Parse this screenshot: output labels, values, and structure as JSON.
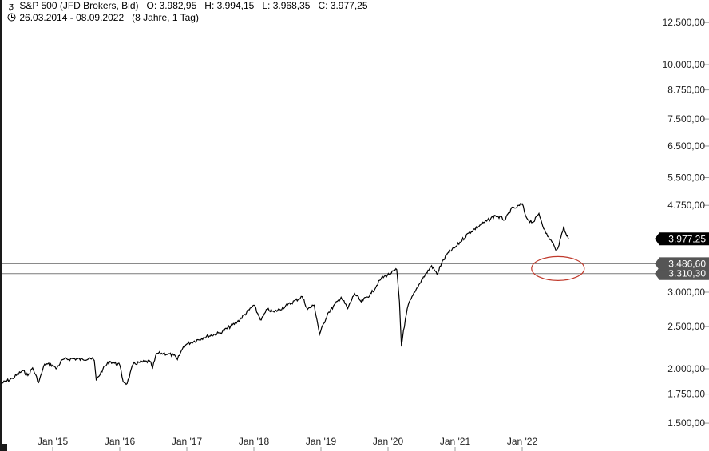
{
  "header": {
    "symbol_icon": "bars-icon",
    "instrument": "S&P 500 (JFD Brokers, Bid)",
    "open_label": "O:",
    "open": "3.982,95",
    "high_label": "H:",
    "high": "3.994,15",
    "low_label": "L:",
    "low": "3.968,35",
    "close_label": "C:",
    "close": "3.977,25",
    "range_icon": "clock-icon",
    "date_range": "26.03.2014 - 08.09.2022",
    "period": "(8 Jahre, 1 Tag)"
  },
  "colors": {
    "line": "#000000",
    "level_line": "#7a7a7a",
    "badge_bg": "#000000",
    "level_badge_bg": "#555555",
    "ellipse": "#c0392b"
  },
  "chart_data": {
    "type": "line",
    "scale": "log",
    "ylim": [
      1400,
      13500
    ],
    "xlim": [
      2014.23,
      2022.69
    ],
    "y_ticks": [
      {
        "value": 12500,
        "label": "12.500,00"
      },
      {
        "value": 10000,
        "label": "10.000,00"
      },
      {
        "value": 8750,
        "label": "8.750,00"
      },
      {
        "value": 7500,
        "label": "7.500,00"
      },
      {
        "value": 6500,
        "label": "6.500,00"
      },
      {
        "value": 5500,
        "label": "5.500,00"
      },
      {
        "value": 4750,
        "label": "4.750,00"
      },
      {
        "value": 3000,
        "label": "3.000,00"
      },
      {
        "value": 2500,
        "label": "2.500,00"
      },
      {
        "value": 2000,
        "label": "2.000,00"
      },
      {
        "value": 1750,
        "label": "1.750,00"
      },
      {
        "value": 1500,
        "label": "1.500,00"
      }
    ],
    "x_ticks": [
      {
        "value": 2015.0,
        "label": "Jan '15"
      },
      {
        "value": 2016.0,
        "label": "Jan '16"
      },
      {
        "value": 2017.0,
        "label": "Jan '17"
      },
      {
        "value": 2018.0,
        "label": "Jan '18"
      },
      {
        "value": 2019.0,
        "label": "Jan '19"
      },
      {
        "value": 2020.0,
        "label": "Jan '20"
      },
      {
        "value": 2021.0,
        "label": "Jan '21"
      },
      {
        "value": 2022.0,
        "label": "Jan '22"
      }
    ],
    "series": [
      {
        "x": [
          2014.23,
          2014.4,
          2014.55,
          2014.63,
          2014.7,
          2014.79,
          2014.88,
          2015.0,
          2015.05,
          2015.15,
          2015.3,
          2015.45,
          2015.55,
          2015.62,
          2015.65,
          2015.75,
          2015.85,
          2015.92,
          2016.0,
          2016.05,
          2016.11,
          2016.2,
          2016.3,
          2016.45,
          2016.49,
          2016.55,
          2016.65,
          2016.8,
          2016.86,
          2016.95,
          2017.0,
          2017.25,
          2017.5,
          2017.75,
          2018.0,
          2018.07,
          2018.11,
          2018.2,
          2018.3,
          2018.5,
          2018.72,
          2018.8,
          2018.9,
          2018.98,
          2019.1,
          2019.3,
          2019.4,
          2019.5,
          2019.6,
          2019.75,
          2019.9,
          2020.05,
          2020.13,
          2020.17,
          2020.2,
          2020.23,
          2020.3,
          2020.4,
          2020.5,
          2020.65,
          2020.73,
          2020.8,
          2020.9,
          2021.0,
          2021.2,
          2021.4,
          2021.6,
          2021.75,
          2021.83,
          2021.92,
          2022.0,
          2022.05,
          2022.1,
          2022.17,
          2022.25,
          2022.35,
          2022.45,
          2022.5,
          2022.55,
          2022.62,
          2022.65,
          2022.69
        ],
        "y": [
          1850,
          1900,
          1980,
          1930,
          2010,
          1860,
          2050,
          2040,
          2000,
          2100,
          2110,
          2100,
          2120,
          2090,
          1880,
          2000,
          2080,
          2060,
          2040,
          1870,
          1850,
          2050,
          2070,
          2080,
          2010,
          2170,
          2170,
          2150,
          2100,
          2250,
          2280,
          2360,
          2420,
          2560,
          2800,
          2650,
          2590,
          2740,
          2700,
          2800,
          2930,
          2740,
          2800,
          2400,
          2680,
          2920,
          2750,
          2980,
          2850,
          2980,
          3230,
          3320,
          3380,
          2850,
          2250,
          2450,
          2800,
          3000,
          3200,
          3450,
          3300,
          3500,
          3700,
          3800,
          4100,
          4300,
          4500,
          4400,
          4650,
          4700,
          4790,
          4500,
          4380,
          4350,
          4550,
          4100,
          3900,
          3750,
          3850,
          4250,
          4100,
          3977
        ]
      }
    ],
    "annotations": [
      {
        "type": "level",
        "value": 3486.6,
        "label": "3.486,60"
      },
      {
        "type": "level",
        "value": 3310.3,
        "label": "3.310,30"
      },
      {
        "type": "last_price",
        "value": 3977.25,
        "label": "3.977,25"
      },
      {
        "type": "ellipse",
        "x": 2022.45,
        "y": 3400
      }
    ]
  }
}
